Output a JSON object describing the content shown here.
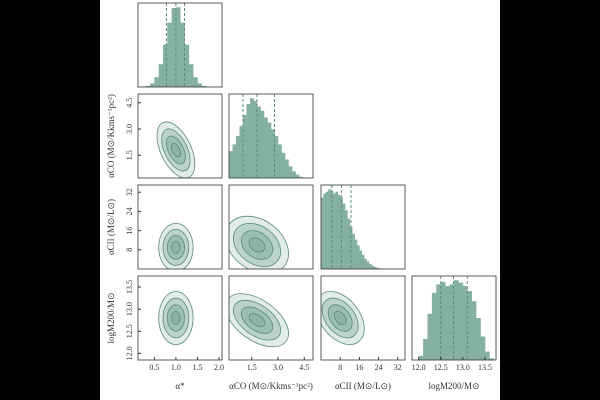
{
  "chart_data": {
    "type": "corner",
    "color": "#86b0a3",
    "edge_color": "#5b8c7e",
    "levels": [
      0.5,
      1,
      1.5,
      2
    ],
    "parameters": [
      {
        "label": "α* ",
        "lim": [
          0.12,
          2.07
        ],
        "ticks": [
          0.5,
          {
            "value": 1,
            "label": "1.0"
          },
          1.5,
          {
            "value": 2,
            "label": "2.0"
          }
        ],
        "quantiles": [
          0.78,
          1.0,
          1.2
        ],
        "bins": [
          0.2,
          0.3,
          0.4,
          0.5,
          0.6,
          0.7,
          0.8,
          0.9,
          1.0,
          1.1,
          1.2,
          1.3,
          1.4,
          1.5,
          1.6,
          1.7,
          1.8,
          1.9,
          2.0
        ],
        "counts": [
          0.003,
          0.013,
          0.044,
          0.12,
          0.28,
          0.52,
          0.79,
          0.97,
          0.98,
          0.79,
          0.52,
          0.28,
          0.12,
          0.044,
          0.013,
          0.003,
          0.001,
          0
        ]
      },
      {
        "label": "αCO (M⊙/Kkms⁻¹pc²)",
        "lim": [
          0.2,
          5.0
        ],
        "ticks": [
          1.5,
          {
            "value": 3,
            "label": "3.0"
          },
          4.5
        ],
        "quantiles": [
          1.0,
          1.8,
          2.8
        ],
        "bins": [
          0.2,
          0.4,
          0.6,
          0.8,
          1.0,
          1.2,
          1.4,
          1.6,
          1.8,
          2.0,
          2.2,
          2.4,
          2.6,
          2.8,
          3.0,
          3.2,
          3.4,
          3.6,
          3.8,
          4.0,
          4.2,
          4.4,
          4.6
        ],
        "counts": [
          0.32,
          0.4,
          0.5,
          0.62,
          0.75,
          0.88,
          0.95,
          0.92,
          0.85,
          0.8,
          0.72,
          0.66,
          0.58,
          0.5,
          0.4,
          0.3,
          0.22,
          0.14,
          0.08,
          0.04,
          0.015,
          0.005
        ]
      },
      {
        "label": "αCII (M⊙/L⊙)",
        "lim": [
          0,
          35
        ],
        "ticks": [
          8,
          16,
          24,
          32
        ],
        "quantiles": [
          4.5,
          8.5,
          12.5
        ],
        "bins": [
          0,
          1,
          2,
          3,
          4,
          5,
          6,
          7,
          8,
          9,
          10,
          11,
          12,
          13,
          14,
          15,
          16,
          17,
          18,
          19,
          20,
          21,
          22,
          23,
          24,
          25,
          26
        ],
        "counts": [
          0.85,
          0.9,
          0.92,
          0.95,
          0.93,
          0.9,
          0.92,
          0.88,
          0.85,
          0.78,
          0.7,
          0.6,
          0.5,
          0.42,
          0.35,
          0.28,
          0.22,
          0.17,
          0.12,
          0.09,
          0.06,
          0.04,
          0.025,
          0.015,
          0.008,
          0.004
        ]
      },
      {
        "label": "logM200/M⊙",
        "lim": [
          11.85,
          13.75
        ],
        "ticks": [
          {
            "value": 12,
            "label": "12.0"
          },
          12.5,
          {
            "value": 13,
            "label": "13.0"
          },
          13.5
        ],
        "quantiles": [
          12.5,
          12.79,
          13.1
        ],
        "bins": [
          12.0,
          12.1,
          12.2,
          12.3,
          12.4,
          12.5,
          12.6,
          12.7,
          12.8,
          12.9,
          13.0,
          13.1,
          13.2,
          13.3,
          13.4,
          13.5,
          13.6,
          13.7
        ],
        "counts": [
          0.05,
          0.25,
          0.55,
          0.8,
          0.9,
          0.93,
          0.88,
          0.9,
          0.95,
          0.92,
          0.88,
          0.82,
          0.7,
          0.5,
          0.28,
          0.1,
          0.02
        ]
      }
    ],
    "contours": [
      [
        {
          "center": [
            1.0,
            1.8
          ],
          "sigma": [
            0.22,
            0.8
          ],
          "rho": -0.5
        }
      ],
      [
        {
          "center": [
            1.0,
            9
          ],
          "sigma": [
            0.2,
            5
          ],
          "rho": 0
        },
        {
          "center": [
            1.8,
            10
          ],
          "sigma": [
            0.9,
            6
          ],
          "rho": -0.3
        }
      ],
      [
        {
          "center": [
            1.0,
            12.8
          ],
          "sigma": [
            0.2,
            0.3
          ],
          "rho": 0
        },
        {
          "center": [
            1.8,
            12.75
          ],
          "sigma": [
            0.9,
            0.3
          ],
          "rho": -0.5
        },
        {
          "center": [
            8,
            12.8
          ],
          "sigma": [
            5,
            0.3
          ],
          "rho": -0.4
        }
      ]
    ]
  }
}
